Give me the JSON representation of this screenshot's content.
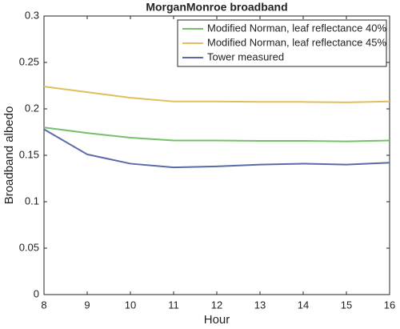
{
  "chart_data": {
    "type": "line",
    "title": "MorganMonroe broadband",
    "x_label": "Hour",
    "y_label": "Broadband albedo",
    "x": [
      8,
      9,
      10,
      11,
      12,
      13,
      14,
      15,
      16
    ],
    "series": [
      {
        "name": "Modified Norman, leaf reflectance 40%",
        "color": "#77bf6a",
        "values": [
          0.18,
          0.174,
          0.169,
          0.166,
          0.166,
          0.1655,
          0.1655,
          0.165,
          0.166
        ]
      },
      {
        "name": "Modified Norman, leaf reflectance 45%",
        "color": "#e2bf5c",
        "values": [
          0.224,
          0.218,
          0.212,
          0.208,
          0.208,
          0.2075,
          0.2075,
          0.207,
          0.208
        ]
      },
      {
        "name": "Tower measured",
        "color": "#5b6aa8",
        "values": [
          0.178,
          0.151,
          0.141,
          0.137,
          0.138,
          0.14,
          0.141,
          0.14,
          0.142
        ]
      }
    ],
    "xlim": [
      8,
      16
    ],
    "xticks": [
      8,
      9,
      10,
      11,
      12,
      13,
      14,
      15,
      16
    ],
    "ylim": [
      0,
      0.3
    ],
    "yticks": [
      0,
      0.05,
      0.1,
      0.15,
      0.2,
      0.25,
      0.3
    ],
    "grid": false,
    "legend": "northeast"
  }
}
